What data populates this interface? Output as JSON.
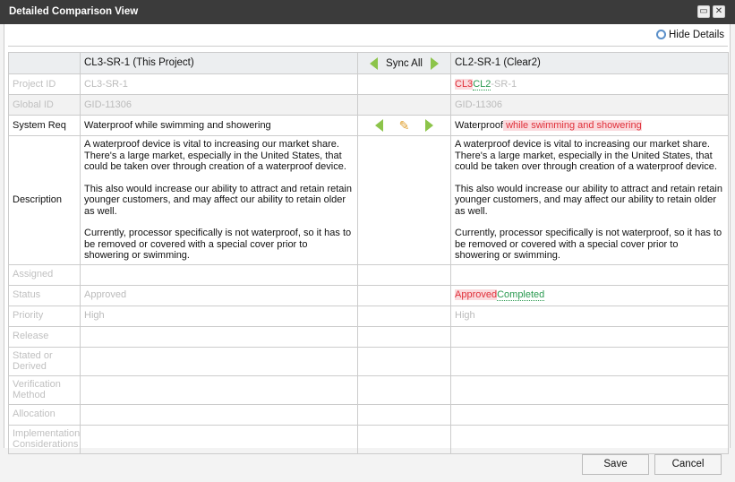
{
  "window": {
    "title": "Detailed Comparison View"
  },
  "toolbar": {
    "hide_details": "Hide Details"
  },
  "header": {
    "left": "CL3-SR-1 (This Project)",
    "sync": "Sync All",
    "right": "CL2-SR-1 (Clear2)"
  },
  "rows": {
    "project_id": {
      "label": "Project ID",
      "left": "CL3-SR-1",
      "right_del": "CL3",
      "right_ins": "CL2",
      "right_rest": "-SR-1"
    },
    "global_id": {
      "label": "Global ID",
      "left": "GID-11306",
      "right": "GID-11306"
    },
    "system_req": {
      "label": "System Req",
      "left": "Waterproof while swimming and showering",
      "right_same": "Waterproof",
      "right_del": " while swimming and showering"
    },
    "description": {
      "label": "Description",
      "p1": "A waterproof device is vital to increasing our market share. There's a large market, especially in the United States, that could be taken over through creation of a waterproof device.",
      "p2": "This also would increase our ability to attract and retain retain younger customers, and may affect our ability to retain older as well.",
      "p3": "Currently, processor specifically is not waterproof, so it has to be removed or covered with a special cover prior to showering or swimming."
    },
    "assigned": {
      "label": "Assigned"
    },
    "status": {
      "label": "Status",
      "left": "Approved",
      "right_del": "Approved",
      "right_ins": "Completed"
    },
    "priority": {
      "label": "Priority",
      "left": "High",
      "right": "High"
    },
    "release": {
      "label": "Release"
    },
    "stated": {
      "label": "Stated or Derived"
    },
    "verification": {
      "label": "Verification Method"
    },
    "allocation": {
      "label": "Allocation"
    },
    "implementation": {
      "label": "Implementation Considerations"
    }
  },
  "footer": {
    "save": "Save",
    "cancel": "Cancel"
  },
  "colors": {
    "deleted": "#e0303a",
    "inserted": "#2a9a50",
    "arrow": "#8cc44a"
  }
}
